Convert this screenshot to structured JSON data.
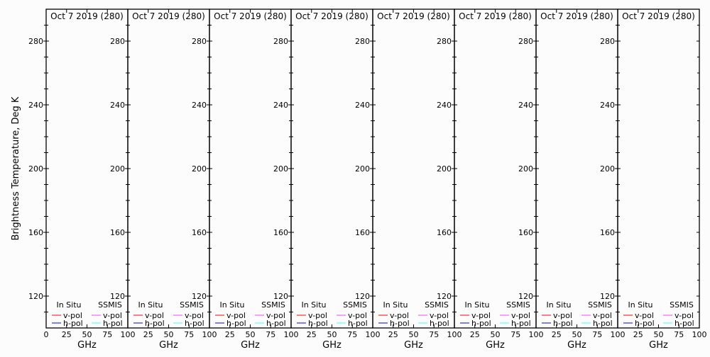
{
  "ylabel": "Brightness Temperature, Deg K",
  "colors": {
    "insitu_v": "#ff0000",
    "insitu_h": "#0000ff",
    "ssmis_v": "#ff40ff",
    "ssmis_h": "#40ffff",
    "axis": "#000000",
    "background": "#fcfcfc"
  },
  "legend": {
    "group_insitu": "In Situ",
    "group_ssmis": "SSMIS",
    "v_pol": "v-pol",
    "h_pol": "h-pol"
  },
  "chart_data": [
    {
      "type": "line",
      "title": "Oct 7 2019 (280)",
      "xlabel": "GHz",
      "xlim": [
        0,
        100
      ],
      "ylim": [
        100,
        300
      ],
      "xticks": [
        "0",
        "25",
        "50",
        "75",
        "100"
      ],
      "yticks": [
        "120",
        "160",
        "200",
        "240",
        "280"
      ],
      "grid": false,
      "legend_placement": "bottom",
      "series": []
    },
    {
      "type": "line",
      "title": "Oct 7 2019 (280)",
      "xlabel": "GHz",
      "xlim": [
        0,
        100
      ],
      "ylim": [
        100,
        300
      ],
      "xticks": [
        "25",
        "50",
        "75",
        "100"
      ],
      "yticks": [
        "120",
        "160",
        "200",
        "240",
        "280"
      ],
      "grid": false,
      "legend_placement": "bottom",
      "series": []
    },
    {
      "type": "line",
      "title": "Oct 7 2019 (280)",
      "xlabel": "GHz",
      "xlim": [
        0,
        100
      ],
      "ylim": [
        100,
        300
      ],
      "xticks": [
        "25",
        "50",
        "75",
        "100"
      ],
      "yticks": [
        "120",
        "160",
        "200",
        "240",
        "280"
      ],
      "grid": false,
      "legend_placement": "bottom",
      "series": []
    },
    {
      "type": "line",
      "title": "Oct 7 2019 (280)",
      "xlabel": "GHz",
      "xlim": [
        0,
        100
      ],
      "ylim": [
        100,
        300
      ],
      "xticks": [
        "25",
        "50",
        "75",
        "100"
      ],
      "yticks": [
        "120",
        "160",
        "200",
        "240",
        "280"
      ],
      "grid": false,
      "legend_placement": "bottom",
      "series": []
    },
    {
      "type": "line",
      "title": "Oct 7 2019 (280)",
      "xlabel": "GHz",
      "xlim": [
        0,
        100
      ],
      "ylim": [
        100,
        300
      ],
      "xticks": [
        "25",
        "50",
        "75",
        "100"
      ],
      "yticks": [
        "120",
        "160",
        "200",
        "240",
        "280"
      ],
      "grid": false,
      "legend_placement": "bottom",
      "series": []
    },
    {
      "type": "line",
      "title": "Oct 7 2019 (280)",
      "xlabel": "GHz",
      "xlim": [
        0,
        100
      ],
      "ylim": [
        100,
        300
      ],
      "xticks": [
        "25",
        "50",
        "75",
        "100"
      ],
      "yticks": [
        "120",
        "160",
        "200",
        "240",
        "280"
      ],
      "grid": false,
      "legend_placement": "bottom",
      "series": []
    },
    {
      "type": "line",
      "title": "Oct 7 2019 (280)",
      "xlabel": "GHz",
      "xlim": [
        0,
        100
      ],
      "ylim": [
        100,
        300
      ],
      "xticks": [
        "25",
        "50",
        "75",
        "100"
      ],
      "yticks": [
        "120",
        "160",
        "200",
        "240",
        "280"
      ],
      "grid": false,
      "legend_placement": "bottom",
      "series": []
    },
    {
      "type": "line",
      "title": "Oct 7 2019 (280)",
      "xlabel": "GHz",
      "xlim": [
        0,
        100
      ],
      "ylim": [
        100,
        300
      ],
      "xticks": [
        "25",
        "50",
        "75",
        "100"
      ],
      "yticks": [
        "120",
        "160",
        "200",
        "240",
        "280"
      ],
      "grid": false,
      "legend_placement": "bottom",
      "series": []
    }
  ]
}
